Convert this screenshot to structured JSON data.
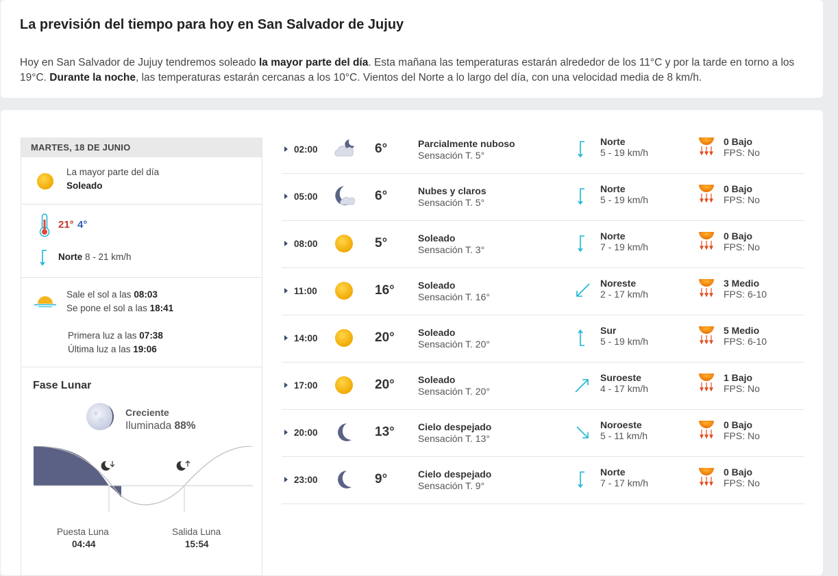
{
  "summary": {
    "title": "La previsión del tiempo para hoy en San Salvador de Jujuy",
    "p1": "Hoy en San Salvador de Jujuy tendremos soleado ",
    "b1": "la mayor parte del día",
    "p2": ". Esta mañana las temperaturas estarán alrededor de los 11°C y por la tarde en torno a los 19°C. ",
    "b2": "Durante la noche",
    "p3": ", las temperaturas estarán cercanas a los 10°C. Vientos del Norte a lo largo del día, con una velocidad media de 8 km/h."
  },
  "day": {
    "header": "MARTES, 18 DE JUNIO",
    "sky_period": "La mayor parte del día",
    "sky_state": "Soleado",
    "temp_max": "21°",
    "temp_min": "4°",
    "wind_dir": "Norte",
    "wind_speed": "8 - 21 km/h",
    "sunrise_label": "Sale el sol a las ",
    "sunrise": "08:03",
    "sunset_label": "Se pone el sol a las ",
    "sunset": "18:41",
    "first_light_label": "Primera luz a las ",
    "first_light": "07:38",
    "last_light_label": "Última luz a las ",
    "last_light": "19:06"
  },
  "moon": {
    "title": "Fase Lunar",
    "phase": "Creciente",
    "illum_label": "Iluminada ",
    "illum": "88%",
    "set_label": "Puesta Luna",
    "set_time": "04:44",
    "rise_label": "Salida Luna",
    "rise_time": "15:54"
  },
  "hourly": [
    {
      "hour": "02:00",
      "icon": "partly-cloudy-night-icon",
      "temp": "6°",
      "cond": "Parcialmente nuboso",
      "feel": "Sensación T. 5°",
      "wdir": "Norte",
      "wspd": "5 - 19 km/h",
      "arrow": "north",
      "uv": "0 Bajo",
      "fps": "FPS: No"
    },
    {
      "hour": "05:00",
      "icon": "cloudy-moon-icon",
      "temp": "6°",
      "cond": "Nubes y claros",
      "feel": "Sensación T. 5°",
      "wdir": "Norte",
      "wspd": "5 - 19 km/h",
      "arrow": "north",
      "uv": "0 Bajo",
      "fps": "FPS: No"
    },
    {
      "hour": "08:00",
      "icon": "sun-icon",
      "temp": "5°",
      "cond": "Soleado",
      "feel": "Sensación T. 3°",
      "wdir": "Norte",
      "wspd": "7 - 19 km/h",
      "arrow": "north",
      "uv": "0 Bajo",
      "fps": "FPS: No"
    },
    {
      "hour": "11:00",
      "icon": "sun-icon",
      "temp": "16°",
      "cond": "Soleado",
      "feel": "Sensación T. 16°",
      "wdir": "Noreste",
      "wspd": "2 - 17 km/h",
      "arrow": "northeast",
      "uv": "3 Medio",
      "fps": "FPS: 6-10"
    },
    {
      "hour": "14:00",
      "icon": "sun-icon",
      "temp": "20°",
      "cond": "Soleado",
      "feel": "Sensación T. 20°",
      "wdir": "Sur",
      "wspd": "5 - 19 km/h",
      "arrow": "south",
      "uv": "5 Medio",
      "fps": "FPS: 6-10"
    },
    {
      "hour": "17:00",
      "icon": "sun-icon",
      "temp": "20°",
      "cond": "Soleado",
      "feel": "Sensación T. 20°",
      "wdir": "Suroeste",
      "wspd": "4 - 17 km/h",
      "arrow": "southwest",
      "uv": "1 Bajo",
      "fps": "FPS: No"
    },
    {
      "hour": "20:00",
      "icon": "moon-icon",
      "temp": "13°",
      "cond": "Cielo despejado",
      "feel": "Sensación T. 13°",
      "wdir": "Noroeste",
      "wspd": "5 - 11 km/h",
      "arrow": "northwest",
      "uv": "0 Bajo",
      "fps": "FPS: No"
    },
    {
      "hour": "23:00",
      "icon": "moon-icon",
      "temp": "9°",
      "cond": "Cielo despejado",
      "feel": "Sensación T. 9°",
      "wdir": "Norte",
      "wspd": "7 - 17 km/h",
      "arrow": "north",
      "uv": "0 Bajo",
      "fps": "FPS: No"
    }
  ],
  "colors": {
    "sun": "#f5b51e",
    "moon": "#5b6386",
    "wind_arrow": "#1ab6d6",
    "temp_max": "#c0392b",
    "temp_min": "#2f5fb3"
  }
}
